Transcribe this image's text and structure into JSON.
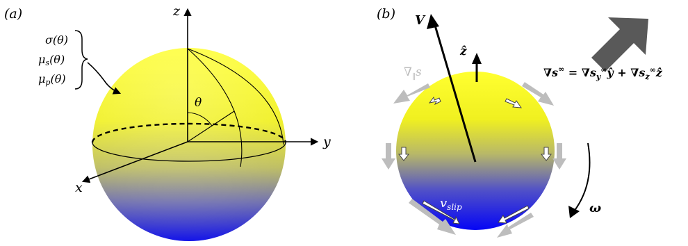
{
  "panel_a": {
    "label": "(a)",
    "axis_z": "z",
    "axis_y": "y",
    "axis_x": "x",
    "angle": "θ",
    "property_labels": [
      "σ(θ)",
      "μs(θ)",
      "μp(θ)"
    ],
    "sub_s": "s",
    "sub_p": "p",
    "mu": "μ",
    "tail": "(θ)"
  },
  "panel_b": {
    "label": "(b)",
    "velocity": "V",
    "z_hat": "ẑ",
    "grad_label_main": "∇",
    "grad_label_sub": "∥",
    "grad_label_s": "s",
    "v_slip_main": "v",
    "v_slip_sub": "slip",
    "omega": "ω",
    "equation": "∇s∞ = ∇sy∞ŷ + ∇sz∞ẑ"
  },
  "colors": {
    "sphere_top": "#ffff22",
    "sphere_mid": "#c8c86a",
    "sphere_bottom": "#1010ee",
    "gray_arrow": "#bdbdbd",
    "big_arrow": "#595959"
  }
}
